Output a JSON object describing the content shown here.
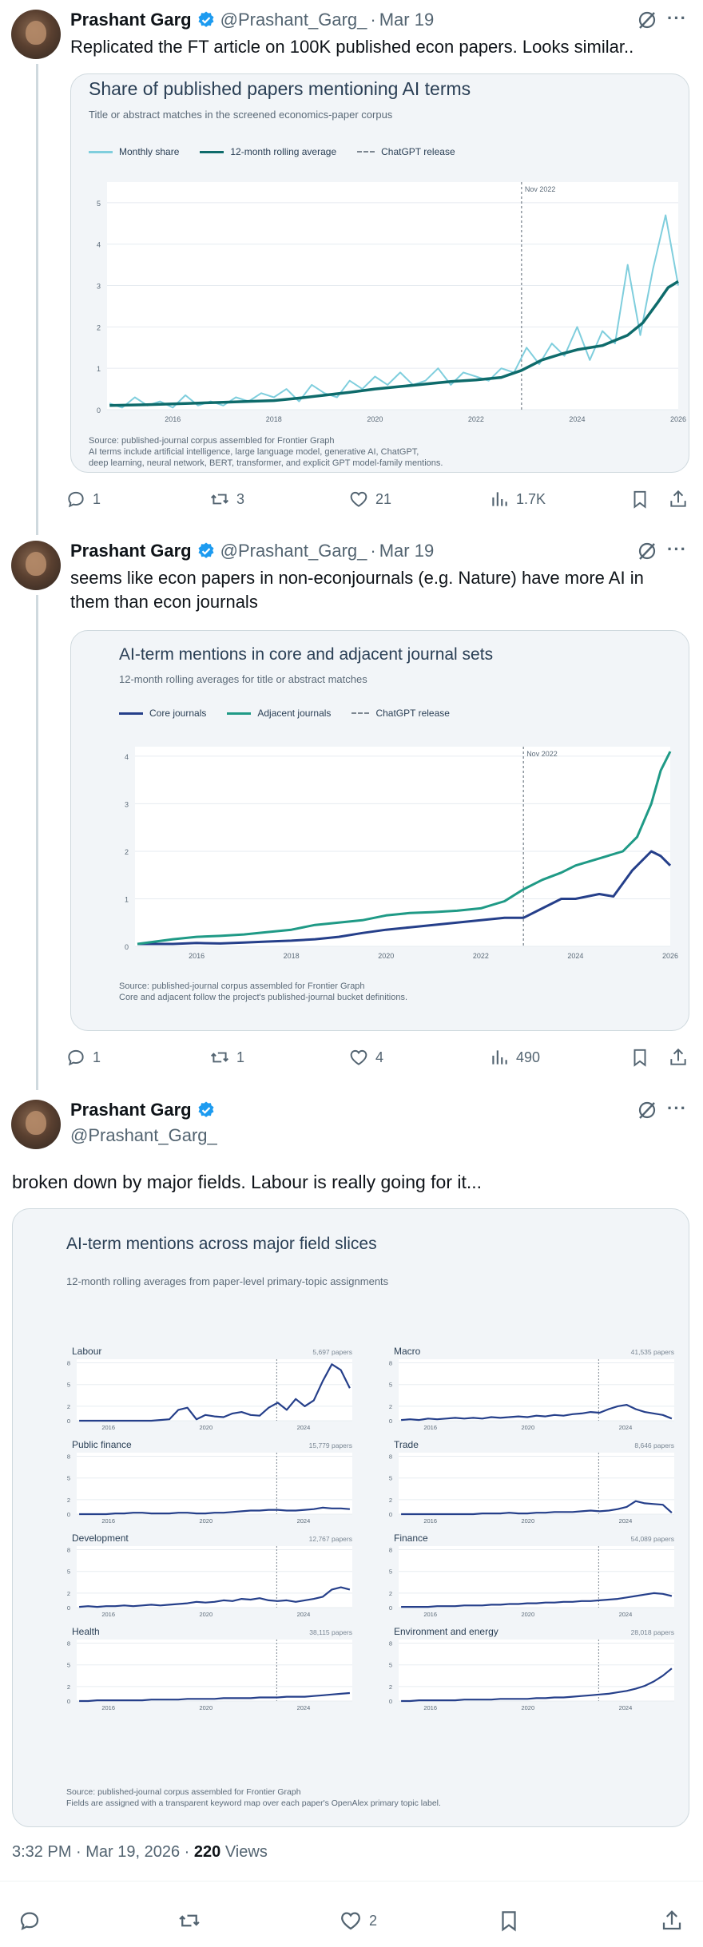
{
  "tweets": [
    {
      "author": "Prashant Garg",
      "handle": "@Prashant_Garg_",
      "date": "Mar 19",
      "text": "Replicated the FT article on 100K published econ papers. Looks similar..",
      "chart": {
        "title": "Share of published papers mentioning AI terms",
        "subtitle": "Title or abstract matches in the screened economics-paper corpus",
        "legend": [
          "Monthly share",
          "12-month rolling average",
          "ChatGPT release"
        ],
        "marker_label": "Nov 2022",
        "source_lines": [
          "Source: published-journal corpus assembled for Frontier Graph",
          "AI terms include artificial intelligence, large language model, generative AI, ChatGPT,",
          "deep learning, neural network, BERT, transformer, and explicit GPT model-family mentions."
        ]
      },
      "stats": {
        "replies": "1",
        "reposts": "3",
        "likes": "21",
        "views": "1.7K"
      }
    },
    {
      "author": "Prashant Garg",
      "handle": "@Prashant_Garg_",
      "date": "Mar 19",
      "text_lines": [
        "seems like econ papers in non-econjournals (e.g. Nature) have more AI in",
        "them than econ journals"
      ],
      "chart": {
        "title": "AI-term mentions in core and adjacent journal sets",
        "subtitle": "12-month rolling averages for title or abstract matches",
        "legend": [
          "Core journals",
          "Adjacent journals",
          "ChatGPT release"
        ],
        "marker_label": "Nov 2022",
        "source_lines": [
          "Source: published-journal corpus assembled for Frontier Graph",
          "Core and adjacent follow the project's published-journal bucket definitions."
        ]
      },
      "stats": {
        "replies": "1",
        "reposts": "1",
        "likes": "4",
        "views": "490"
      }
    },
    {
      "author": "Prashant Garg",
      "handle": "@Prashant_Garg_",
      "text": "broken down by major fields. Labour is really going for it...",
      "chart": {
        "title": "AI-term mentions across major field slices",
        "subtitle": "12-month rolling averages from paper-level primary-topic assignments",
        "source_lines": [
          "Source: published-journal corpus assembled for Frontier Graph",
          "Fields are assigned with a transparent keyword map over each paper's OpenAlex primary topic label."
        ]
      },
      "timestamp_time": "3:32 PM · Mar 19, 2026 ·",
      "timestamp_views": "220",
      "timestamp_views_label": "Views",
      "stats": {
        "likes": "2"
      }
    }
  ],
  "colors": {
    "monthly": "#7fcedd",
    "rolling": "#0e6b6b",
    "core": "#253f8a",
    "adjacent": "#1f9a86",
    "marker": "#7d8791",
    "verified": "#1d9bf0"
  },
  "chart_data": [
    {
      "type": "line",
      "title": "Share of published papers mentioning AI terms",
      "subtitle": "Title or abstract matches in the screened economics-paper corpus",
      "xlim": [
        2014.7,
        2026.0
      ],
      "ylim": [
        0,
        5.5
      ],
      "xticks": [
        2016,
        2018,
        2020,
        2022,
        2024,
        2026
      ],
      "yticks": [
        0,
        1,
        2,
        3,
        4,
        5
      ],
      "marker_x": 2022.9,
      "series": [
        {
          "name": "Monthly share",
          "x": [
            2014.75,
            2015.0,
            2015.25,
            2015.5,
            2015.75,
            2016.0,
            2016.25,
            2016.5,
            2016.75,
            2017.0,
            2017.25,
            2017.5,
            2017.75,
            2018.0,
            2018.25,
            2018.5,
            2018.75,
            2019.0,
            2019.25,
            2019.5,
            2019.75,
            2020.0,
            2020.25,
            2020.5,
            2020.75,
            2021.0,
            2021.25,
            2021.5,
            2021.75,
            2022.0,
            2022.25,
            2022.5,
            2022.75,
            2023.0,
            2023.25,
            2023.5,
            2023.75,
            2024.0,
            2024.25,
            2024.5,
            2024.75,
            2025.0,
            2025.25,
            2025.5,
            2025.75,
            2026.0
          ],
          "values": [
            0.15,
            0.05,
            0.3,
            0.1,
            0.2,
            0.05,
            0.35,
            0.1,
            0.2,
            0.1,
            0.3,
            0.2,
            0.4,
            0.3,
            0.5,
            0.2,
            0.6,
            0.4,
            0.3,
            0.7,
            0.5,
            0.8,
            0.6,
            0.9,
            0.6,
            0.7,
            1.0,
            0.6,
            0.9,
            0.8,
            0.7,
            1.0,
            0.9,
            1.5,
            1.1,
            1.6,
            1.3,
            2.0,
            1.2,
            1.9,
            1.6,
            3.5,
            1.8,
            3.4,
            4.7,
            3.0
          ]
        },
        {
          "name": "12-month rolling average",
          "x": [
            2014.75,
            2015.5,
            2016.0,
            2016.5,
            2017.0,
            2017.5,
            2018.0,
            2018.5,
            2019.0,
            2019.5,
            2020.0,
            2020.5,
            2021.0,
            2021.5,
            2022.0,
            2022.5,
            2022.9,
            2023.3,
            2023.7,
            2024.0,
            2024.5,
            2025.0,
            2025.3,
            2025.6,
            2025.8,
            2026.0
          ],
          "values": [
            0.1,
            0.12,
            0.14,
            0.16,
            0.18,
            0.2,
            0.22,
            0.28,
            0.35,
            0.42,
            0.5,
            0.56,
            0.62,
            0.68,
            0.72,
            0.78,
            0.95,
            1.2,
            1.35,
            1.45,
            1.55,
            1.8,
            2.1,
            2.6,
            2.95,
            3.1
          ]
        }
      ]
    },
    {
      "type": "line",
      "title": "AI-term mentions in core and adjacent journal sets",
      "subtitle": "12-month rolling averages for title or abstract matches",
      "xlim": [
        2014.7,
        2026.0
      ],
      "ylim": [
        0,
        4.2
      ],
      "xticks": [
        2016,
        2018,
        2020,
        2022,
        2024,
        2026
      ],
      "yticks": [
        0,
        1,
        2,
        3,
        4
      ],
      "marker_x": 2022.9,
      "series": [
        {
          "name": "Core journals",
          "x": [
            2014.75,
            2015.5,
            2016.0,
            2016.5,
            2017.0,
            2017.5,
            2018.0,
            2018.5,
            2019.0,
            2019.5,
            2020.0,
            2020.5,
            2021.0,
            2021.5,
            2022.0,
            2022.5,
            2022.9,
            2023.3,
            2023.7,
            2024.0,
            2024.5,
            2024.8,
            2025.2,
            2025.6,
            2025.8,
            2026.0
          ],
          "values": [
            0.05,
            0.05,
            0.07,
            0.06,
            0.08,
            0.1,
            0.12,
            0.15,
            0.2,
            0.28,
            0.35,
            0.4,
            0.45,
            0.5,
            0.55,
            0.6,
            0.6,
            0.8,
            1.0,
            1.0,
            1.1,
            1.05,
            1.6,
            2.0,
            1.9,
            1.7
          ]
        },
        {
          "name": "Adjacent journals",
          "x": [
            2014.75,
            2015.5,
            2016.0,
            2016.5,
            2017.0,
            2017.5,
            2018.0,
            2018.5,
            2019.0,
            2019.5,
            2020.0,
            2020.5,
            2021.0,
            2021.5,
            2022.0,
            2022.5,
            2022.9,
            2023.3,
            2023.7,
            2024.0,
            2024.5,
            2025.0,
            2025.3,
            2025.6,
            2025.8,
            2026.0
          ],
          "values": [
            0.05,
            0.15,
            0.2,
            0.22,
            0.25,
            0.3,
            0.35,
            0.45,
            0.5,
            0.55,
            0.65,
            0.7,
            0.72,
            0.75,
            0.8,
            0.95,
            1.2,
            1.4,
            1.55,
            1.7,
            1.85,
            2.0,
            2.3,
            3.0,
            3.7,
            4.1
          ]
        }
      ]
    },
    {
      "type": "line",
      "title": "AI-term mentions across major field slices",
      "subtitle": "12-month rolling averages from paper-level primary-topic assignments",
      "xlim": [
        2014.7,
        2026.0
      ],
      "ylim": [
        0,
        8.5
      ],
      "xticks": [
        2016,
        2020,
        2024
      ],
      "yticks": [
        0,
        2,
        5,
        8
      ],
      "marker_x": 2022.9,
      "panels": [
        {
          "name": "Labour",
          "count": "5,697 papers",
          "values": [
            0,
            0,
            0,
            0,
            0,
            0,
            0,
            0,
            0,
            0.1,
            0.2,
            1.5,
            1.8,
            0.2,
            0.8,
            0.6,
            0.5,
            1.0,
            1.2,
            0.8,
            0.7,
            1.8,
            2.5,
            1.5,
            3.0,
            2.0,
            2.8,
            5.5,
            7.8,
            7.0,
            4.5
          ]
        },
        {
          "name": "Macro",
          "count": "41,535 papers",
          "values": [
            0.1,
            0.2,
            0.1,
            0.3,
            0.2,
            0.3,
            0.4,
            0.3,
            0.4,
            0.3,
            0.5,
            0.4,
            0.5,
            0.6,
            0.5,
            0.7,
            0.6,
            0.8,
            0.7,
            0.9,
            1.0,
            1.2,
            1.1,
            1.6,
            2.0,
            2.2,
            1.6,
            1.2,
            1.0,
            0.8,
            0.3
          ]
        },
        {
          "name": "Public finance",
          "count": "15,779 papers",
          "values": [
            0,
            0,
            0,
            0,
            0.1,
            0.1,
            0.2,
            0.2,
            0.1,
            0.1,
            0.1,
            0.2,
            0.2,
            0.1,
            0.1,
            0.2,
            0.2,
            0.3,
            0.4,
            0.5,
            0.5,
            0.6,
            0.6,
            0.5,
            0.5,
            0.6,
            0.7,
            0.9,
            0.8,
            0.8,
            0.7
          ]
        },
        {
          "name": "Trade",
          "count": "8,646 papers",
          "values": [
            0,
            0,
            0,
            0,
            0,
            0,
            0,
            0,
            0,
            0.1,
            0.1,
            0.1,
            0.2,
            0.1,
            0.1,
            0.2,
            0.2,
            0.3,
            0.3,
            0.3,
            0.4,
            0.5,
            0.4,
            0.5,
            0.7,
            1.0,
            1.8,
            1.5,
            1.4,
            1.3,
            0.2
          ]
        },
        {
          "name": "Development",
          "count": "12,767 papers",
          "values": [
            0.1,
            0.2,
            0.1,
            0.2,
            0.2,
            0.3,
            0.2,
            0.3,
            0.4,
            0.3,
            0.4,
            0.5,
            0.6,
            0.8,
            0.7,
            0.8,
            1.0,
            0.9,
            1.2,
            1.1,
            1.3,
            1.0,
            0.9,
            1.0,
            0.8,
            1.0,
            1.2,
            1.5,
            2.5,
            2.8,
            2.5
          ]
        },
        {
          "name": "Finance",
          "count": "54,089 papers",
          "values": [
            0.1,
            0.1,
            0.1,
            0.1,
            0.2,
            0.2,
            0.2,
            0.3,
            0.3,
            0.3,
            0.4,
            0.4,
            0.5,
            0.5,
            0.6,
            0.6,
            0.7,
            0.7,
            0.8,
            0.8,
            0.9,
            0.9,
            1.0,
            1.1,
            1.2,
            1.4,
            1.6,
            1.8,
            2.0,
            1.9,
            1.6
          ]
        },
        {
          "name": "Health",
          "count": "38,115 papers",
          "values": [
            0,
            0,
            0.1,
            0.1,
            0.1,
            0.1,
            0.1,
            0.1,
            0.2,
            0.2,
            0.2,
            0.2,
            0.3,
            0.3,
            0.3,
            0.3,
            0.4,
            0.4,
            0.4,
            0.4,
            0.5,
            0.5,
            0.5,
            0.6,
            0.6,
            0.6,
            0.7,
            0.8,
            0.9,
            1.0,
            1.1
          ]
        },
        {
          "name": "Environment and energy",
          "count": "28,018 papers",
          "values": [
            0,
            0,
            0.1,
            0.1,
            0.1,
            0.1,
            0.1,
            0.2,
            0.2,
            0.2,
            0.2,
            0.3,
            0.3,
            0.3,
            0.3,
            0.4,
            0.4,
            0.5,
            0.5,
            0.6,
            0.7,
            0.8,
            0.9,
            1.0,
            1.2,
            1.4,
            1.7,
            2.1,
            2.7,
            3.5,
            4.5
          ]
        }
      ]
    }
  ]
}
